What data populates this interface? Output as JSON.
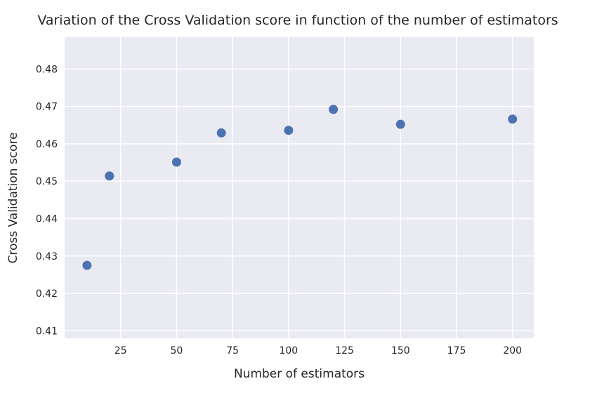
{
  "chart_data": {
    "type": "scatter",
    "title": "Variation of the Cross Validation score in function of the number of estimators",
    "xlabel": "Number of estimators",
    "ylabel": "Cross Validation score",
    "xlim": [
      0,
      209.5
    ],
    "ylim": [
      0.408,
      0.4885
    ],
    "xticks": [
      25,
      50,
      75,
      100,
      125,
      150,
      175,
      200
    ],
    "xtick_labels": [
      "25",
      "50",
      "75",
      "100",
      "125",
      "150",
      "175",
      "200"
    ],
    "yticks": [
      0.41,
      0.42,
      0.43,
      0.44,
      0.45,
      0.46,
      0.47,
      0.48
    ],
    "ytick_labels": [
      "0.41",
      "0.42",
      "0.43",
      "0.44",
      "0.45",
      "0.46",
      "0.47",
      "0.48"
    ],
    "grid": true,
    "legend": "none",
    "style": {
      "background": "#eaeaf2",
      "gridline": "#ffffff",
      "marker": "#4c72b0"
    },
    "points": [
      {
        "x": 10,
        "y": 0.4275
      },
      {
        "x": 20,
        "y": 0.4514
      },
      {
        "x": 50,
        "y": 0.4551
      },
      {
        "x": 70,
        "y": 0.4629
      },
      {
        "x": 100,
        "y": 0.4636
      },
      {
        "x": 120,
        "y": 0.4692
      },
      {
        "x": 150,
        "y": 0.4652
      },
      {
        "x": 200,
        "y": 0.4666
      }
    ]
  }
}
